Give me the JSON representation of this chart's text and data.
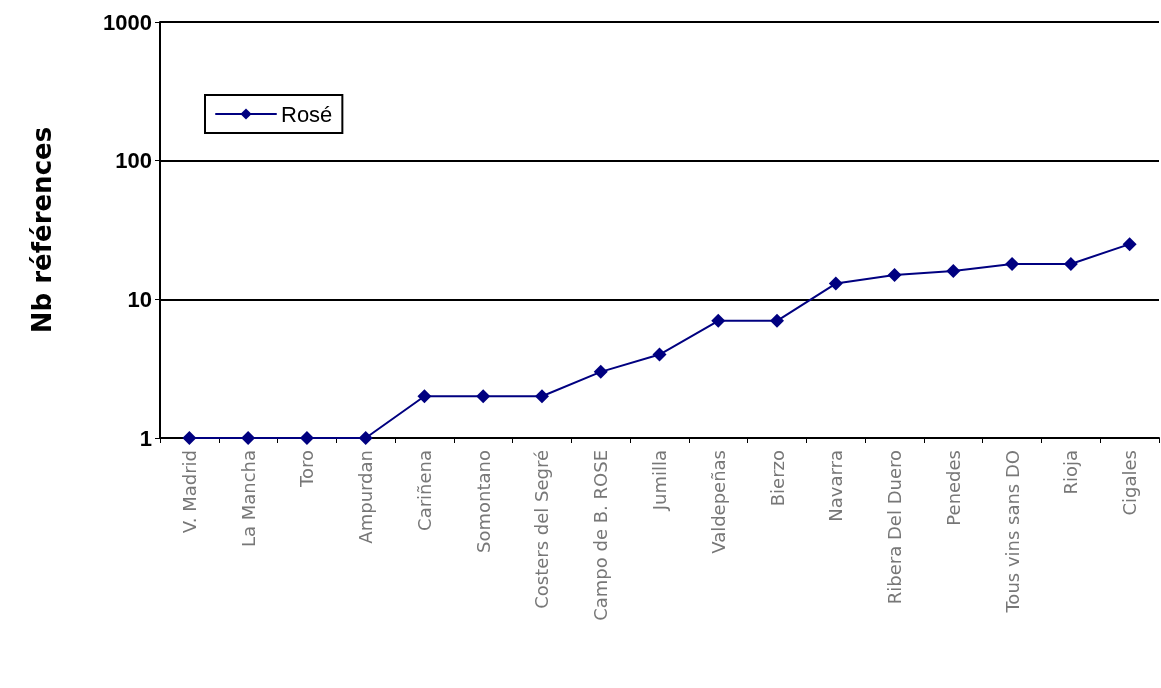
{
  "chart_data": {
    "type": "line",
    "ylabel": "Nb références",
    "categories": [
      "V. Madrid",
      "La Mancha",
      "Toro",
      "Ampurdan",
      "Cariñena",
      "Somontano",
      "Costers del Segré",
      "Campo de B. ROSE",
      "Jumilla",
      "Valdepeñas",
      "Bierzo",
      "Navarra",
      "Ribera Del Duero",
      "Penedes",
      "Tous vins sans DO",
      "Rioja",
      "Cigales"
    ],
    "series": [
      {
        "name": "Rosé",
        "color": "#000080",
        "values": [
          1,
          1,
          1,
          1,
          2,
          2,
          2,
          3,
          4,
          7,
          7,
          13,
          15,
          16,
          18,
          18,
          25
        ]
      }
    ],
    "log": "y",
    "ylim": [
      1,
      1000
    ],
    "yticks": [
      1,
      10,
      100,
      1000
    ],
    "grid": "y",
    "legend": "top left",
    "marker": "diamond",
    "line_style": "solid"
  }
}
